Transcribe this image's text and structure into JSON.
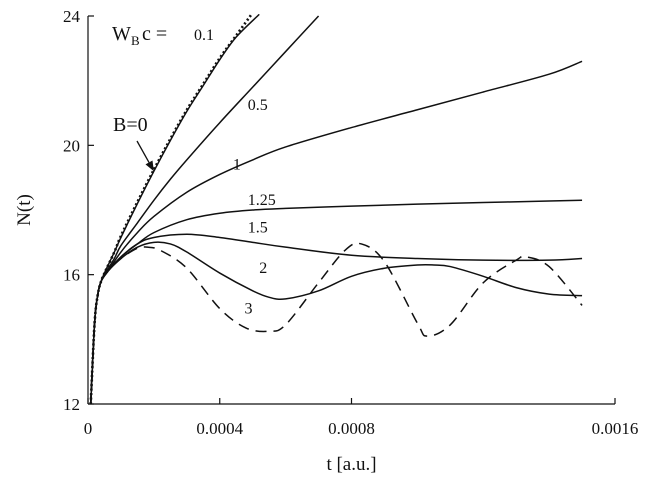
{
  "chart_data": {
    "type": "line",
    "title": "",
    "xlabel": "t [a.u.]",
    "ylabel": "N(t)",
    "xlim": [
      0,
      0.0016
    ],
    "ylim": [
      12,
      24
    ],
    "x_ticks": [
      {
        "value": 0,
        "label": "0"
      },
      {
        "value": 0.0004,
        "label": "0.0004"
      },
      {
        "value": 0.0008,
        "label": "0.0008"
      },
      {
        "value": 0.0016,
        "label": "0.0016"
      }
    ],
    "y_ticks": [
      {
        "value": 12,
        "label": "12"
      },
      {
        "value": 16,
        "label": "16"
      },
      {
        "value": 20,
        "label": "20"
      },
      {
        "value": 24,
        "label": "24"
      }
    ],
    "legend_title": {
      "main": "W",
      "sub": "B",
      "suffix": "c  =",
      "value": "0.1"
    },
    "annotation": {
      "text": "B=0",
      "arrow_to": {
        "x": 0.0002,
        "y": 19.2
      }
    },
    "label_anchors": {
      "0.5": {
        "x": 0.000485,
        "y": 21.1
      },
      "1": {
        "x": 0.00044,
        "y": 19.25
      },
      "1.25": {
        "x": 0.000485,
        "y": 18.15
      },
      "1.5": {
        "x": 0.000485,
        "y": 17.3
      },
      "2": {
        "x": 0.00052,
        "y": 16.05
      },
      "3": {
        "x": 0.000475,
        "y": 14.8
      }
    },
    "series": [
      {
        "label": "B=0",
        "style": "dotted",
        "x": [
          8.3e-06,
          2e-05,
          3e-05,
          4e-05,
          5e-05,
          8e-05,
          0.0001,
          0.00015,
          0.0002,
          0.00025,
          0.0003,
          0.00035,
          0.0004,
          0.00045,
          0.0005
        ],
        "y": [
          12,
          14.5,
          15.4,
          15.8,
          16.05,
          16.7,
          17.2,
          18.25,
          19.25,
          20.2,
          21.1,
          21.9,
          22.7,
          23.4,
          24.1
        ]
      },
      {
        "label": "0.1",
        "style": "solid",
        "x": [
          8.3e-06,
          2e-05,
          3e-05,
          4e-05,
          5e-05,
          8e-05,
          0.0001,
          0.00015,
          0.0002,
          0.00025,
          0.0003,
          0.00035,
          0.0004,
          0.00045,
          0.00052
        ],
        "y": [
          12,
          14.5,
          15.4,
          15.8,
          16.05,
          16.7,
          17.15,
          18.2,
          19.2,
          20.15,
          21.05,
          21.85,
          22.65,
          23.35,
          24.05
        ]
      },
      {
        "label": "0.5",
        "style": "solid",
        "x": [
          8.3e-06,
          2e-05,
          3e-05,
          4e-05,
          5e-05,
          8e-05,
          0.0001,
          0.00015,
          0.0002,
          0.00025,
          0.0003,
          0.0004,
          0.0005,
          0.0006,
          0.0007
        ],
        "y": [
          12,
          14.5,
          15.4,
          15.8,
          16.0,
          16.5,
          16.9,
          17.6,
          18.3,
          18.95,
          19.55,
          20.7,
          21.8,
          22.9,
          24.0
        ]
      },
      {
        "label": "1",
        "style": "solid",
        "x": [
          8.3e-06,
          2e-05,
          3e-05,
          4e-05,
          6e-05,
          0.0001,
          0.00015,
          0.0002,
          0.0003,
          0.0004,
          0.0005,
          0.0006,
          0.0008,
          0.001,
          0.0012,
          0.0014,
          0.0015
        ],
        "y": [
          12,
          14.5,
          15.4,
          15.8,
          16.1,
          16.7,
          17.3,
          17.8,
          18.55,
          19.1,
          19.55,
          19.95,
          20.55,
          21.1,
          21.65,
          22.2,
          22.6
        ]
      },
      {
        "label": "1.25",
        "style": "solid",
        "x": [
          8.3e-06,
          2e-05,
          3e-05,
          4e-05,
          6e-05,
          0.0001,
          0.00015,
          0.0002,
          0.0003,
          0.0004,
          0.0005,
          0.0006,
          0.0008,
          0.001,
          0.0012,
          0.0014,
          0.0015
        ],
        "y": [
          12,
          14.5,
          15.4,
          15.8,
          16.1,
          16.55,
          16.95,
          17.3,
          17.7,
          17.9,
          18.0,
          18.05,
          18.12,
          18.18,
          18.23,
          18.28,
          18.3
        ]
      },
      {
        "label": "1.5",
        "style": "solid",
        "x": [
          8.3e-06,
          2e-05,
          3e-05,
          4e-05,
          6e-05,
          0.0001,
          0.00015,
          0.0002,
          0.0003,
          0.0004,
          0.0005,
          0.0006,
          0.0008,
          0.001,
          0.0012,
          0.0014,
          0.0015
        ],
        "y": [
          12,
          14.5,
          15.4,
          15.8,
          16.1,
          16.55,
          16.95,
          17.15,
          17.25,
          17.15,
          17.0,
          16.85,
          16.6,
          16.5,
          16.45,
          16.45,
          16.5
        ]
      },
      {
        "label": "2",
        "style": "solid",
        "x": [
          8.3e-06,
          2e-05,
          3e-05,
          4e-05,
          6e-05,
          0.0001,
          0.00015,
          0.0002,
          0.00025,
          0.0003,
          0.0004,
          0.0005,
          0.00055,
          0.0006,
          0.0007,
          0.0008,
          0.0009,
          0.001,
          0.00105,
          0.0011,
          0.0012,
          0.0013,
          0.0014,
          0.0015
        ],
        "y": [
          12,
          14.5,
          15.4,
          15.8,
          16.1,
          16.5,
          16.85,
          17.0,
          16.95,
          16.7,
          16.05,
          15.5,
          15.3,
          15.25,
          15.5,
          15.95,
          16.2,
          16.3,
          16.3,
          16.25,
          15.95,
          15.6,
          15.4,
          15.35
        ]
      },
      {
        "label": "3",
        "style": "dashed",
        "x": [
          8.3e-06,
          2e-05,
          3e-05,
          4e-05,
          6e-05,
          0.0001,
          0.00015,
          0.00018,
          0.00022,
          0.0003,
          0.0004,
          0.00048,
          0.00055,
          0.0006,
          0.0007,
          0.00078,
          0.00083,
          0.0009,
          0.001,
          0.00103,
          0.0011,
          0.0012,
          0.0013,
          0.00133,
          0.0014,
          0.0015
        ],
        "y": [
          12,
          14.5,
          15.4,
          15.8,
          16.1,
          16.5,
          16.82,
          16.85,
          16.75,
          16.2,
          14.95,
          14.35,
          14.25,
          14.45,
          15.75,
          16.75,
          16.95,
          16.4,
          14.5,
          14.1,
          14.45,
          15.75,
          16.45,
          16.55,
          16.25,
          15.05
        ]
      }
    ]
  }
}
